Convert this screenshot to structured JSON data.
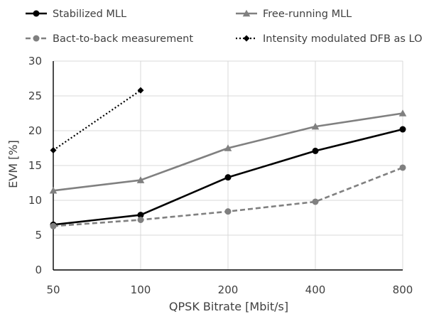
{
  "chart_data": {
    "type": "line",
    "categories": [
      "50",
      "100",
      "200",
      "400",
      "800"
    ],
    "xlabel": "QPSK Bitrate [Mbit/s]",
    "ylabel": "EVM [%]",
    "ylim": [
      0,
      30
    ],
    "yticks": [
      0,
      5,
      10,
      15,
      20,
      25,
      30
    ],
    "grid": true,
    "legend_position": "top",
    "series": [
      {
        "name": "Stabilized MLL",
        "values": [
          6.5,
          7.9,
          13.3,
          17.1,
          20.2
        ],
        "color": "#000000",
        "line": "solid",
        "marker": "circle"
      },
      {
        "name": "Free-running MLL",
        "values": [
          11.4,
          12.9,
          17.5,
          20.6,
          22.5
        ],
        "color": "#808080",
        "line": "solid",
        "marker": "triangle"
      },
      {
        "name": "Bact-to-back measurement",
        "values": [
          6.3,
          7.2,
          8.4,
          9.8,
          14.7
        ],
        "color": "#808080",
        "line": "dashed",
        "marker": "circle"
      },
      {
        "name": "Intensity modulated DFB as LO",
        "values": [
          17.2,
          25.8,
          null,
          null,
          null
        ],
        "color": "#000000",
        "line": "dotted",
        "marker": "diamond"
      }
    ]
  }
}
